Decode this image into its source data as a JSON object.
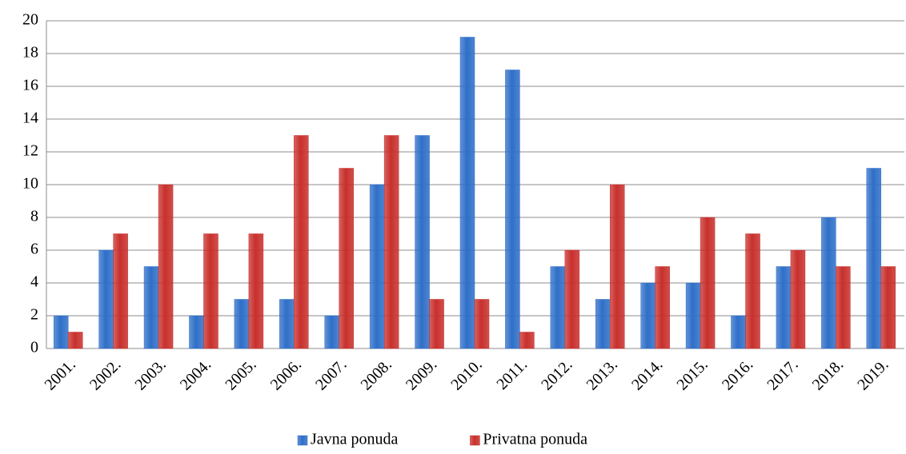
{
  "chart_data": {
    "type": "bar",
    "categories": [
      "2001.",
      "2002.",
      "2003.",
      "2004.",
      "2005.",
      "2006.",
      "2007.",
      "2008.",
      "2009.",
      "2010.",
      "2011.",
      "2012.",
      "2013.",
      "2014.",
      "2015.",
      "2016.",
      "2017.",
      "2018.",
      "2019."
    ],
    "series": [
      {
        "name": "Javna ponuda",
        "color": "#2f6fc8",
        "values": [
          2,
          6,
          5,
          2,
          3,
          3,
          2,
          10,
          13,
          19,
          17,
          5,
          3,
          4,
          4,
          2,
          5,
          8,
          11
        ]
      },
      {
        "name": "Privatna ponuda",
        "color": "#c8302c",
        "values": [
          1,
          7,
          10,
          7,
          7,
          13,
          11,
          13,
          3,
          3,
          1,
          6,
          10,
          5,
          8,
          7,
          6,
          5,
          5
        ]
      }
    ],
    "ylim": [
      0,
      20
    ],
    "yticks": [
      0,
      2,
      4,
      6,
      8,
      10,
      12,
      14,
      16,
      18,
      20
    ],
    "grid": true,
    "legend": "bottom"
  }
}
